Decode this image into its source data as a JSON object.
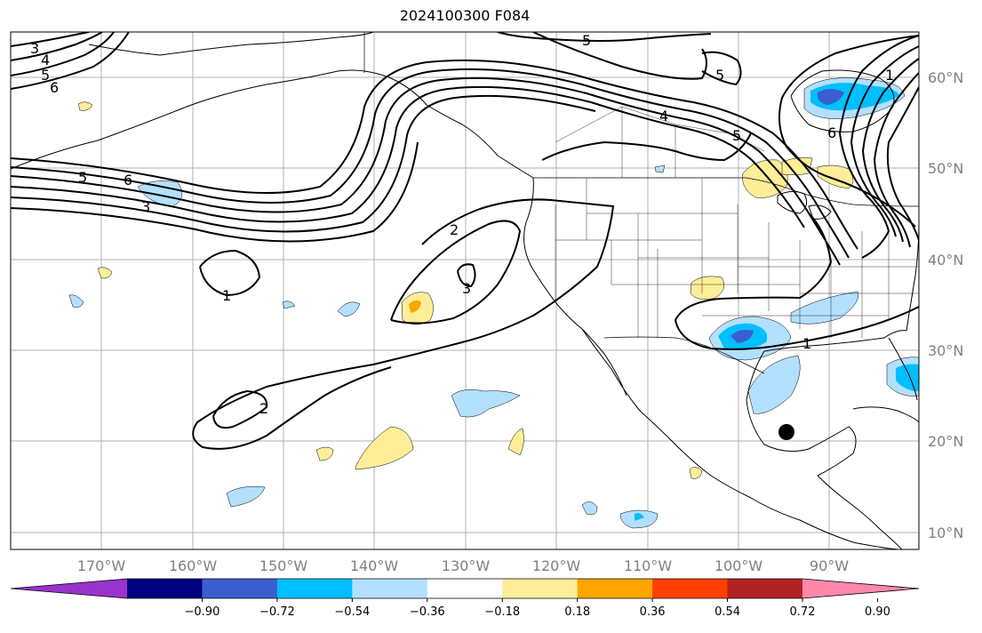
{
  "title": "2024100300 F084",
  "lat_labels": [
    "60°N",
    "50°N",
    "40°N",
    "30°N",
    "20°N",
    "10°N"
  ],
  "lon_labels": [
    "170°W",
    "160°W",
    "150°W",
    "140°W",
    "130°W",
    "120°W",
    "110°W",
    "100°W",
    "90°W"
  ],
  "colorbar": {
    "colors": [
      "#9933cc",
      "#000080",
      "#3a5fcd",
      "#00bfff",
      "#b3e0ff",
      "#ffffff",
      "#ffee99",
      "#ffa500",
      "#ff4000",
      "#b22222",
      "#ff88aa"
    ],
    "extend_low_color": "#9933cc",
    "extend_high_color": "#ff88aa",
    "tick_labels": [
      "−0.90",
      "−0.72",
      "−0.54",
      "−0.36",
      "−0.18",
      "0.18",
      "0.36",
      "0.54",
      "0.72",
      "0.90"
    ]
  },
  "contour_labels": [
    "3",
    "4",
    "5",
    "6",
    "5",
    "6",
    "3",
    "1",
    "2",
    "3",
    "2",
    "5",
    "4",
    "5",
    "6",
    "1",
    "1",
    "5"
  ],
  "marker": "black-dot"
}
